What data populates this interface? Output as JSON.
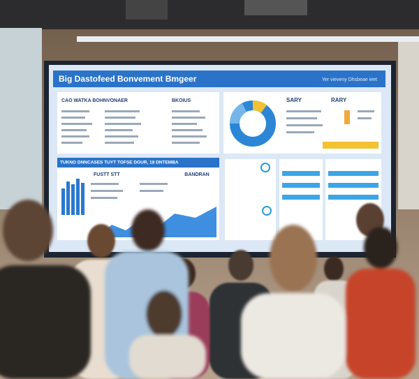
{
  "screen": {
    "title": "Big Dastofeed Bonvement Bmgeer",
    "header_right": "Yer vieveny Dhsbeae ieet",
    "panels": [
      {
        "label": "CAO WATKA BOHNVONAER"
      },
      {
        "label": "BKOIUS"
      },
      {
        "label": "SARY"
      },
      {
        "label": "RARY"
      },
      {
        "label": "FUSTT STT"
      },
      {
        "label": "BANDRAN"
      }
    ],
    "banner": "TUKNO DNNCASES TUYT TOFSE DOUR, 18 DNTEMBA"
  }
}
